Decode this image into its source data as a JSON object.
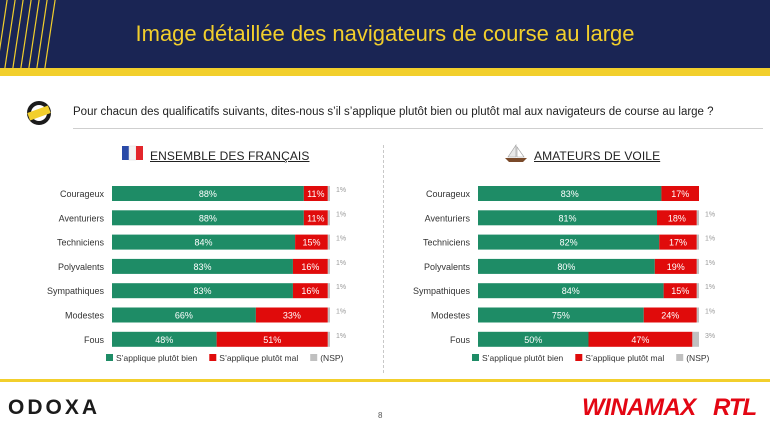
{
  "header": {
    "title": "Image détaillée des navigateurs de course au large"
  },
  "question": "Pour chacun des qualificatifs suivants, dites-nous s’il s’applique plutôt bien ou plutôt mal aux navigateurs de course au large ?",
  "colors": {
    "bien": "#1e8c66",
    "mal": "#e00b0b",
    "nsp": "#c0c0c0",
    "navy": "#1a2554",
    "yellow": "#f2cf2c"
  },
  "footer": {
    "odoxa": "ODOXA",
    "page": "8",
    "winamax": "WINAMAX",
    "rtl": "RTL"
  },
  "chart_data": [
    {
      "type": "bar",
      "stacked": true,
      "orientation": "horizontal",
      "title": "ENSEMBLE DES FRANÇAIS",
      "icon": "france-flag-icon",
      "categories": [
        "Courageux",
        "Aventuriers",
        "Techniciens",
        "Polyvalents",
        "Sympathiques",
        "Modestes",
        "Fous"
      ],
      "series": [
        {
          "name": "S’applique plutôt bien",
          "values": [
            88,
            88,
            84,
            83,
            83,
            66,
            48
          ],
          "labels": [
            "88%",
            "88%",
            "84%",
            "83%",
            "83%",
            "66%",
            "48%"
          ]
        },
        {
          "name": "S’applique plutôt mal",
          "values": [
            11,
            11,
            15,
            16,
            16,
            33,
            51
          ],
          "labels": [
            "11%",
            "11%",
            "15%",
            "16%",
            "16%",
            "33%",
            "51%"
          ]
        },
        {
          "name": "(NSP)",
          "values": [
            1,
            1,
            1,
            1,
            1,
            1,
            1
          ],
          "labels": [
            "1%",
            "1%",
            "1%",
            "1%",
            "1%",
            "1%",
            "1%"
          ]
        }
      ],
      "xlim": [
        0,
        100
      ],
      "legend": "bottom"
    },
    {
      "type": "bar",
      "stacked": true,
      "orientation": "horizontal",
      "title": "AMATEURS DE VOILE",
      "icon": "sailboat-icon",
      "categories": [
        "Courageux",
        "Aventuriers",
        "Techniciens",
        "Polyvalents",
        "Sympathiques",
        "Modestes",
        "Fous"
      ],
      "series": [
        {
          "name": "S’applique plutôt bien",
          "values": [
            83,
            81,
            82,
            80,
            84,
            75,
            50
          ],
          "labels": [
            "83%",
            "81%",
            "82%",
            "80%",
            "84%",
            "75%",
            "50%"
          ]
        },
        {
          "name": "S’applique plutôt mal",
          "values": [
            17,
            18,
            17,
            19,
            15,
            24,
            47
          ],
          "labels": [
            "17%",
            "18%",
            "17%",
            "19%",
            "15%",
            "24%",
            "47%"
          ]
        },
        {
          "name": "(NSP)",
          "values": [
            0,
            1,
            1,
            1,
            1,
            1,
            3
          ],
          "labels": [
            "",
            "1%",
            "1%",
            "1%",
            "1%",
            "1%",
            "3%"
          ]
        }
      ],
      "xlim": [
        0,
        100
      ],
      "legend": "bottom"
    }
  ]
}
